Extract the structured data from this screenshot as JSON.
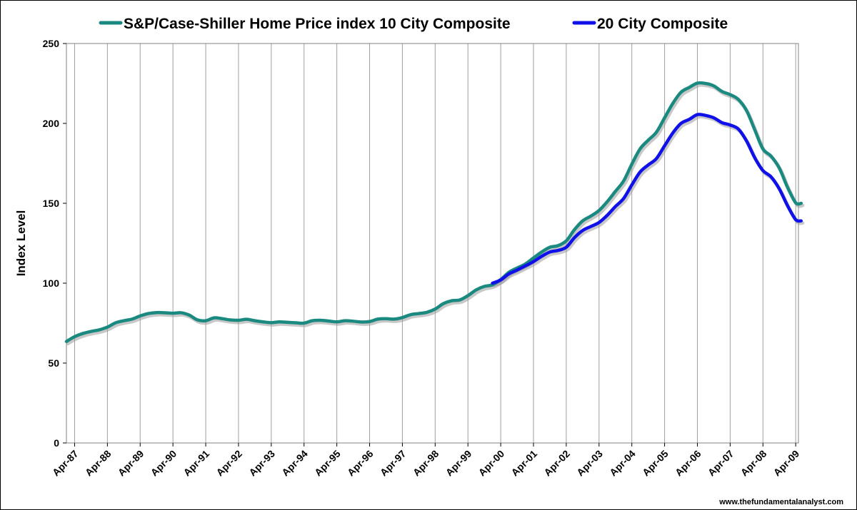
{
  "chart_data": {
    "type": "line",
    "title": "",
    "xlabel": "",
    "ylabel": "Index Level",
    "ylim": [
      0,
      250
    ],
    "yticks": [
      0,
      50,
      100,
      150,
      200,
      250
    ],
    "grid": "vertical",
    "legend_position": "top",
    "x_tick_labels": [
      "Apr-87",
      "Apr-88",
      "Apr-89",
      "Apr-90",
      "Apr-91",
      "Apr-92",
      "Apr-93",
      "Apr-94",
      "Apr-95",
      "Apr-96",
      "Apr-97",
      "Apr-98",
      "Apr-99",
      "Apr-00",
      "Apr-01",
      "Apr-02",
      "Apr-03",
      "Apr-04",
      "Apr-05",
      "Apr-06",
      "Apr-07",
      "Apr-08",
      "Apr-09"
    ],
    "series": [
      {
        "name": "S&P/Case-Shiller Home Price index 10 City Composite",
        "color": "#1a8a80",
        "points": [
          [
            "Jan-87",
            63.5
          ],
          [
            "Apr-87",
            66.5
          ],
          [
            "Jul-87",
            68.5
          ],
          [
            "Oct-87",
            69.8
          ],
          [
            "Jan-88",
            70.8
          ],
          [
            "Apr-88",
            72.5
          ],
          [
            "Jul-88",
            75.2
          ],
          [
            "Oct-88",
            76.5
          ],
          [
            "Jan-89",
            77.5
          ],
          [
            "Apr-89",
            79.5
          ],
          [
            "Jul-89",
            81.0
          ],
          [
            "Oct-89",
            81.6
          ],
          [
            "Jan-90",
            81.5
          ],
          [
            "Apr-90",
            81.2
          ],
          [
            "Jul-90",
            81.5
          ],
          [
            "Oct-90",
            80.0
          ],
          [
            "Jan-91",
            77.0
          ],
          [
            "Apr-91",
            76.5
          ],
          [
            "Jul-91",
            78.3
          ],
          [
            "Oct-91",
            77.8
          ],
          [
            "Jan-92",
            77.0
          ],
          [
            "Apr-92",
            76.8
          ],
          [
            "Jul-92",
            77.4
          ],
          [
            "Oct-92",
            76.5
          ],
          [
            "Jan-93",
            75.8
          ],
          [
            "Apr-93",
            75.3
          ],
          [
            "Jul-93",
            75.8
          ],
          [
            "Oct-93",
            75.5
          ],
          [
            "Jan-94",
            75.2
          ],
          [
            "Apr-94",
            75.0
          ],
          [
            "Jul-94",
            76.5
          ],
          [
            "Oct-94",
            76.8
          ],
          [
            "Jan-95",
            76.3
          ],
          [
            "Apr-95",
            75.8
          ],
          [
            "Jul-95",
            76.5
          ],
          [
            "Oct-95",
            76.2
          ],
          [
            "Jan-96",
            75.7
          ],
          [
            "Apr-96",
            76.0
          ],
          [
            "Jul-96",
            77.5
          ],
          [
            "Oct-96",
            77.8
          ],
          [
            "Jan-97",
            77.5
          ],
          [
            "Apr-97",
            78.5
          ],
          [
            "Jul-97",
            80.3
          ],
          [
            "Oct-97",
            81.0
          ],
          [
            "Jan-98",
            81.8
          ],
          [
            "Apr-98",
            83.8
          ],
          [
            "Jul-98",
            87.2
          ],
          [
            "Oct-98",
            89.0
          ],
          [
            "Jan-99",
            89.5
          ],
          [
            "Apr-99",
            92.2
          ],
          [
            "Jul-99",
            95.8
          ],
          [
            "Oct-99",
            98.0
          ],
          [
            "Jan-00",
            99.0
          ],
          [
            "Apr-00",
            102.3
          ],
          [
            "Jul-00",
            106.8
          ],
          [
            "Oct-00",
            109.5
          ],
          [
            "Jan-01",
            112.0
          ],
          [
            "Apr-01",
            115.8
          ],
          [
            "Jul-01",
            119.5
          ],
          [
            "Oct-01",
            122.5
          ],
          [
            "Jan-02",
            123.5
          ],
          [
            "Apr-02",
            126.5
          ],
          [
            "Jul-02",
            133.5
          ],
          [
            "Oct-02",
            139.0
          ],
          [
            "Jan-03",
            142.0
          ],
          [
            "Apr-03",
            145.5
          ],
          [
            "Jul-03",
            151.0
          ],
          [
            "Oct-03",
            157.5
          ],
          [
            "Jan-04",
            164.0
          ],
          [
            "Apr-04",
            174.5
          ],
          [
            "Jul-04",
            184.0
          ],
          [
            "Oct-04",
            189.5
          ],
          [
            "Jan-05",
            194.5
          ],
          [
            "Apr-05",
            203.5
          ],
          [
            "Jul-05",
            212.5
          ],
          [
            "Oct-05",
            219.5
          ],
          [
            "Jan-06",
            222.5
          ],
          [
            "Apr-06",
            225.2
          ],
          [
            "Jul-06",
            225.0
          ],
          [
            "Oct-06",
            223.5
          ],
          [
            "Jan-07",
            220.0
          ],
          [
            "Apr-07",
            218.0
          ],
          [
            "Jul-07",
            215.0
          ],
          [
            "Oct-07",
            208.0
          ],
          [
            "Jan-08",
            196.0
          ],
          [
            "Apr-08",
            184.0
          ],
          [
            "Jul-08",
            179.5
          ],
          [
            "Oct-08",
            172.0
          ],
          [
            "Jan-09",
            160.0
          ],
          [
            "Apr-09",
            150.3
          ],
          [
            "Jun-09",
            150.0
          ]
        ]
      },
      {
        "name": "20 City Composite",
        "color": "#1010e8",
        "points": [
          [
            "Jan-00",
            100.0
          ],
          [
            "Apr-00",
            102.0
          ],
          [
            "Jul-00",
            105.8
          ],
          [
            "Oct-00",
            108.2
          ],
          [
            "Jan-01",
            110.8
          ],
          [
            "Apr-01",
            113.5
          ],
          [
            "Jul-01",
            116.8
          ],
          [
            "Oct-01",
            119.5
          ],
          [
            "Jan-02",
            120.5
          ],
          [
            "Apr-02",
            122.5
          ],
          [
            "Jul-02",
            128.5
          ],
          [
            "Oct-02",
            133.0
          ],
          [
            "Jan-03",
            135.5
          ],
          [
            "Apr-03",
            138.0
          ],
          [
            "Jul-03",
            142.5
          ],
          [
            "Oct-03",
            148.0
          ],
          [
            "Jan-04",
            153.0
          ],
          [
            "Apr-04",
            161.5
          ],
          [
            "Jul-04",
            169.5
          ],
          [
            "Oct-04",
            174.0
          ],
          [
            "Jan-05",
            178.0
          ],
          [
            "Apr-05",
            186.0
          ],
          [
            "Jul-05",
            194.0
          ],
          [
            "Oct-05",
            200.0
          ],
          [
            "Jan-06",
            202.5
          ],
          [
            "Apr-06",
            205.5
          ],
          [
            "Jul-06",
            205.0
          ],
          [
            "Oct-06",
            203.5
          ],
          [
            "Jan-07",
            200.5
          ],
          [
            "Apr-07",
            199.0
          ],
          [
            "Jul-07",
            196.5
          ],
          [
            "Oct-07",
            189.0
          ],
          [
            "Jan-08",
            178.5
          ],
          [
            "Apr-08",
            170.5
          ],
          [
            "Jul-08",
            166.5
          ],
          [
            "Oct-08",
            159.0
          ],
          [
            "Jan-09",
            148.5
          ],
          [
            "Apr-09",
            139.8
          ],
          [
            "Jun-09",
            139.0
          ]
        ]
      }
    ],
    "credit": "www.thefundamentalanalyst.com"
  }
}
